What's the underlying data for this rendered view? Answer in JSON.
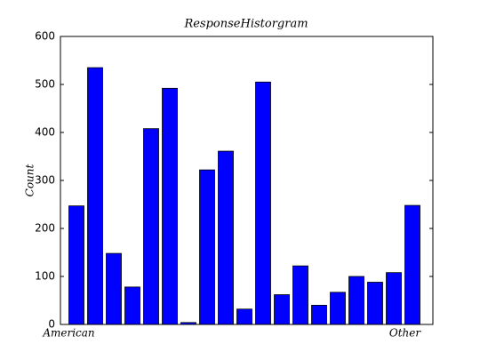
{
  "chart_data": {
    "type": "bar",
    "title": "ResponseHistorgram",
    "y_label": "Count",
    "categories": [
      "American",
      null,
      null,
      null,
      null,
      null,
      null,
      null,
      null,
      null,
      null,
      null,
      null,
      null,
      null,
      null,
      null,
      null,
      "Other"
    ],
    "values": [
      247,
      535,
      148,
      78,
      408,
      492,
      4,
      322,
      361,
      32,
      505,
      62,
      122,
      40,
      67,
      100,
      88,
      108,
      248
    ],
    "color": "#0000ff",
    "ylim": [
      0,
      600
    ],
    "yticks": [
      0,
      100,
      200,
      300,
      400,
      500,
      600
    ],
    "grid": false
  }
}
